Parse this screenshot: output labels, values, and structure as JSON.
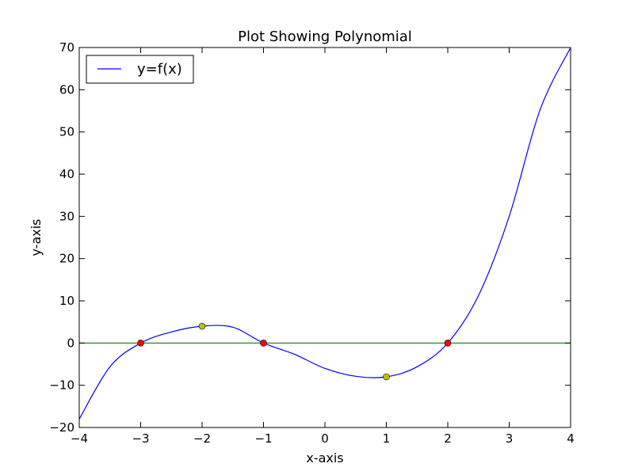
{
  "chart_data": {
    "type": "line",
    "title": "Plot Showing Polynomial",
    "xlabel": "x-axis",
    "ylabel": "y-axis",
    "xlim": [
      -4,
      4
    ],
    "ylim": [
      -20,
      70
    ],
    "x_ticks": [
      -4,
      -3,
      -2,
      -1,
      0,
      1,
      2,
      3,
      4
    ],
    "x_tick_labels": [
      "−4",
      "−3",
      "−2",
      "−1",
      "0",
      "1",
      "2",
      "3",
      "4"
    ],
    "y_ticks": [
      -20,
      -10,
      0,
      10,
      20,
      30,
      40,
      50,
      60,
      70
    ],
    "y_tick_labels": [
      "−20",
      "−10",
      "0",
      "10",
      "20",
      "30",
      "40",
      "50",
      "60",
      "70"
    ],
    "grid": false,
    "legend": {
      "position": "top-left",
      "entries": [
        "y=f(x)"
      ]
    },
    "series": [
      {
        "name": "y=f(x)",
        "color": "#0000ff",
        "x": [
          -4,
          -3.5,
          -3,
          -2.5,
          -2,
          -1.5,
          -1,
          -0.5,
          0,
          0.5,
          1,
          1.5,
          2,
          2.5,
          3,
          3.5,
          4
        ],
        "y": [
          -18,
          -5.625,
          0,
          2.625,
          4,
          3.75,
          0,
          -2.625,
          -6,
          -7.875,
          -8,
          -5.625,
          0,
          11.25,
          30,
          55.125,
          70
        ]
      }
    ],
    "horizontal_line": {
      "y": 0,
      "color": "#008000"
    },
    "roots": {
      "color": "#ff0000",
      "x": [
        -3,
        -1,
        2
      ],
      "y": [
        0,
        0,
        0
      ]
    },
    "critical_points": {
      "color": "#bfbf00",
      "x": [
        -2,
        1
      ],
      "y": [
        4,
        -8
      ]
    }
  }
}
